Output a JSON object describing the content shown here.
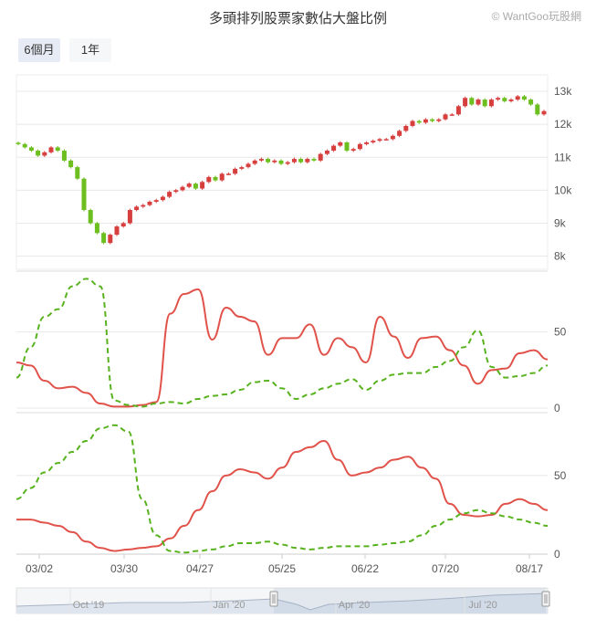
{
  "header": {
    "title": "多頭排列股票家數佔大盤比例",
    "credit": "© WantGoo玩股網"
  },
  "range_buttons": [
    {
      "label": "6個月",
      "active": true
    },
    {
      "label": "1年",
      "active": false
    }
  ],
  "colors": {
    "up": "#d73f3f",
    "down": "#6cbf1f",
    "line_red": "#e0524a",
    "line_green": "#58b21e",
    "grid": "#e8e8e8"
  },
  "chart_data": [
    {
      "type": "candlestick",
      "title": "",
      "y_ticks": [
        "8k",
        "9k",
        "10k",
        "11k",
        "12k",
        "13k"
      ],
      "ylim": [
        7600,
        13500
      ],
      "x_ticks": [
        "03/02",
        "03/30",
        "04/27",
        "05/25",
        "06/22",
        "07/20",
        "08/17"
      ],
      "close": [
        11400,
        11300,
        11200,
        11050,
        11150,
        11300,
        11200,
        10900,
        10700,
        10350,
        9400,
        9000,
        8700,
        8400,
        8650,
        8900,
        9000,
        9400,
        9500,
        9550,
        9650,
        9700,
        9800,
        9950,
        10000,
        10100,
        10200,
        10050,
        10250,
        10400,
        10300,
        10500,
        10500,
        10650,
        10700,
        10800,
        10900,
        10950,
        10850,
        10900,
        10800,
        10850,
        10950,
        10850,
        10950,
        10900,
        11100,
        11200,
        11350,
        11450,
        11200,
        11250,
        11400,
        11450,
        11500,
        11550,
        11550,
        11650,
        11800,
        11950,
        12100,
        12050,
        12150,
        12100,
        12150,
        12300,
        12300,
        12550,
        12800,
        12600,
        12750,
        12550,
        12750,
        12800,
        12700,
        12750,
        12850,
        12750,
        12600,
        12300,
        12400
      ]
    },
    {
      "type": "line",
      "y_ticks": [
        "0",
        "50"
      ],
      "ylim": [
        0,
        90
      ],
      "series": [
        {
          "values": [
            30,
            28,
            18,
            13,
            14,
            10,
            3,
            1,
            1,
            2,
            4,
            62,
            75,
            78,
            45,
            66,
            60,
            57,
            35,
            46,
            46,
            55,
            35,
            46,
            40,
            30,
            60,
            47,
            33,
            46,
            47,
            38,
            28,
            16,
            25,
            26,
            36,
            38,
            32
          ]
        },
        {
          "values": [
            20,
            40,
            60,
            65,
            80,
            85,
            80,
            5,
            2,
            1,
            3,
            4,
            3,
            6,
            8,
            9,
            12,
            17,
            18,
            13,
            6,
            9,
            13,
            16,
            19,
            12,
            18,
            22,
            23,
            23,
            27,
            31,
            40,
            51,
            27,
            20,
            21,
            23,
            28
          ]
        }
      ]
    },
    {
      "type": "line",
      "y_ticks": [
        "0",
        "50"
      ],
      "ylim": [
        0,
        90
      ],
      "series": [
        {
          "values": [
            22,
            22,
            20,
            18,
            14,
            8,
            4,
            2,
            3,
            4,
            5,
            10,
            18,
            28,
            40,
            50,
            54,
            52,
            48,
            55,
            65,
            68,
            72,
            60,
            50,
            52,
            55,
            60,
            62,
            55,
            48,
            32,
            25,
            24,
            25,
            32,
            35,
            32,
            28
          ]
        },
        {
          "values": [
            35,
            42,
            52,
            58,
            65,
            72,
            80,
            82,
            78,
            35,
            12,
            2,
            1,
            2,
            3,
            5,
            7,
            7,
            8,
            6,
            4,
            3,
            4,
            5,
            5,
            5,
            6,
            7,
            8,
            12,
            18,
            22,
            26,
            28,
            26,
            24,
            22,
            20,
            18
          ]
        }
      ]
    }
  ],
  "navigator": {
    "labels": [
      "Oct '19",
      "Jan '20",
      "Apr '20",
      "Jul '20"
    ]
  }
}
